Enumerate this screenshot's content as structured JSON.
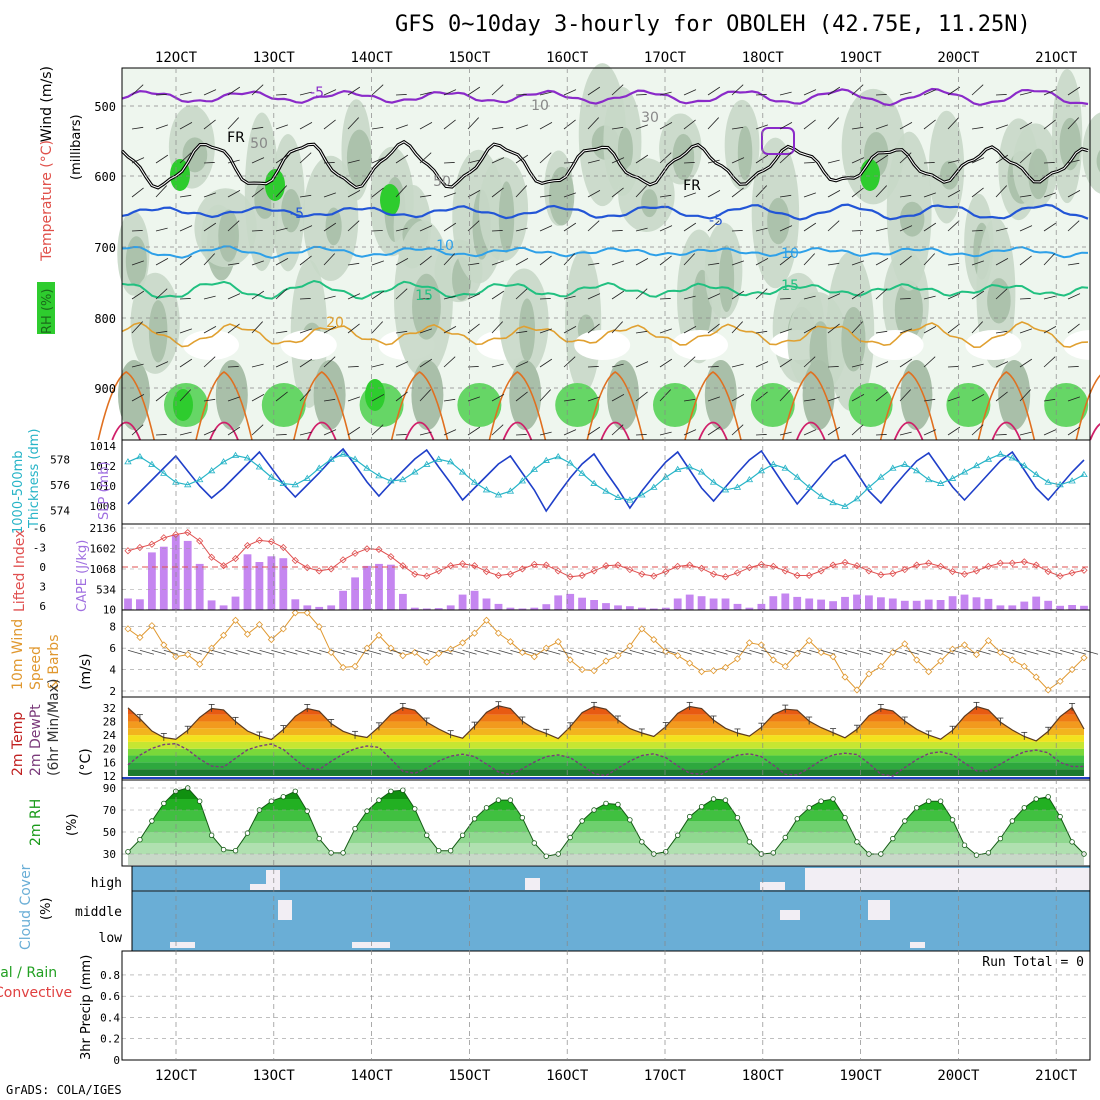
{
  "title": "GFS 0~10day 3-hourly for OBOLEH (42.75E, 11.25N)",
  "credit": "GrADS: COLA/IGES",
  "colors": {
    "rh_light": "#e2efe2",
    "rh_mid": "#c8d8c8",
    "rh_dark": "#a9bfa9",
    "rh_green": "#66d666",
    "rh_bright": "#2ecc2e",
    "cape_bar": "#c586f0",
    "li_line": "#e05050",
    "slp_line": "#1f3fc9",
    "thk_line": "#27b4c7",
    "wind_line": "#e0982f",
    "cloud_fill": "#6aaed6",
    "rh2m_fill": "#22bb22",
    "temp_fill": "#f08a1a"
  },
  "chart_data": {
    "type": "meteogram",
    "time_axis": {
      "ticks": [
        "12OCT",
        "13OCT",
        "14OCT",
        "15OCT",
        "16OCT",
        "17OCT",
        "18OCT",
        "19OCT",
        "20OCT",
        "21OCT"
      ],
      "steps_3hr": 81
    },
    "panels": [
      {
        "id": "upper_air",
        "ylabel_parts": [
          "Wind (m/s)",
          "Temperature (°C)",
          "RH (%)",
          "(millibars)"
        ],
        "yticks": [
          "500",
          "600",
          "700",
          "800",
          "900"
        ],
        "contour_labels": [
          "-5",
          "FR",
          "-5",
          "10",
          "15",
          "20",
          "10",
          "15",
          "FR",
          "-5",
          "50",
          "50",
          "30",
          "10"
        ],
        "rh_colorbar": "RH (%)"
      },
      {
        "id": "slp_thickness",
        "ylabel_left": [
          "1000-500mb",
          "Thickness (dm)"
        ],
        "ylabel_right": "SLP (mb)",
        "yticks_left": [
          "574",
          "576",
          "578"
        ],
        "yticks_right": [
          "1008",
          "1010",
          "1012",
          "1014"
        ],
        "slp": [
          1008.2,
          1009.4,
          1010.6,
          1011.8,
          1013.0,
          1011.5,
          1010.0,
          1008.8,
          1009.8,
          1011.0,
          1012.2,
          1013.4,
          1011.8,
          1010.2,
          1008.9,
          1010.1,
          1011.3,
          1012.6,
          1013.7,
          1012.1,
          1010.4,
          1009.0,
          1010.3,
          1011.5,
          1012.7,
          1013.6,
          1011.9,
          1010.3,
          1008.6,
          1009.8,
          1011.0,
          1012.2,
          1013.0,
          1011.3,
          1009.6,
          1007.5,
          1009.2,
          1010.8,
          1012.2,
          1013.2,
          1011.4,
          1009.7,
          1007.8,
          1009.5,
          1011.0,
          1012.4,
          1013.4,
          1011.6,
          1009.8,
          1008.5,
          1009.9,
          1011.3,
          1012.6,
          1013.5,
          1011.7,
          1009.9,
          1008.2,
          1009.6,
          1011.0,
          1012.4,
          1013.1,
          1011.3,
          1009.5,
          1008.3,
          1009.8,
          1011.2,
          1012.5,
          1013.3,
          1011.6,
          1009.9,
          1008.6,
          1009.9,
          1011.2,
          1012.5,
          1013.4,
          1011.6,
          1009.8,
          1008.6,
          1010.0,
          1011.4,
          1012.6
        ],
        "thickness": [
          577.8,
          578.2,
          577.6,
          576.9,
          576.2,
          576.0,
          576.4,
          577.1,
          577.8,
          578.3,
          578.1,
          577.4,
          576.6,
          576.1,
          576.0,
          576.5,
          577.3,
          578.0,
          578.4,
          578.0,
          577.3,
          576.7,
          576.3,
          576.4,
          577.0,
          577.6,
          578.0,
          577.8,
          577.0,
          576.2,
          575.6,
          575.2,
          575.5,
          576.3,
          577.2,
          577.9,
          578.2,
          577.7,
          576.9,
          576.1,
          575.5,
          575.0,
          574.8,
          575.2,
          575.8,
          576.6,
          577.2,
          577.4,
          577.0,
          576.2,
          575.6,
          575.8,
          576.4,
          577.1,
          577.6,
          577.3,
          576.6,
          575.8,
          575.1,
          574.6,
          574.3,
          574.9,
          575.8,
          576.6,
          577.3,
          577.6,
          577.1,
          576.4,
          576.1,
          576.5,
          577.0,
          577.5,
          578.0,
          578.4,
          578.1,
          577.5,
          576.8,
          576.2,
          576.0,
          576.3,
          576.8
        ]
      },
      {
        "id": "cape_li",
        "ylabel_left": "Lifted Index",
        "ylabel_right": "CAPE (J/kg)",
        "yticks_left": [
          "6",
          "3",
          "0",
          "-3",
          "-6"
        ],
        "yticks_right": [
          "10",
          "534",
          "1068",
          "1602",
          "2136"
        ],
        "cape": [
          300,
          280,
          1500,
          1650,
          1950,
          1800,
          1200,
          250,
          120,
          350,
          1450,
          1250,
          1400,
          1350,
          280,
          120,
          80,
          120,
          500,
          850,
          1150,
          1200,
          1180,
          420,
          60,
          40,
          50,
          120,
          400,
          500,
          300,
          160,
          60,
          40,
          60,
          150,
          380,
          420,
          320,
          260,
          180,
          120,
          100,
          60,
          40,
          60,
          300,
          400,
          360,
          300,
          300,
          160,
          60,
          160,
          360,
          430,
          340,
          300,
          270,
          230,
          340,
          400,
          380,
          330,
          300,
          240,
          240,
          270,
          260,
          360,
          400,
          330,
          290,
          120,
          120,
          220,
          350,
          240,
          110,
          130,
          110
        ],
        "lifted_index": [
          -2.5,
          -3.0,
          -3.5,
          -4.5,
          -5.0,
          -5.3,
          -4.0,
          -1.5,
          -0.2,
          -1.3,
          -3.3,
          -4.1,
          -3.9,
          -3.0,
          -1.0,
          0.1,
          0.6,
          0.3,
          -1.1,
          -2.1,
          -2.8,
          -2.7,
          -1.6,
          -0.2,
          1.1,
          1.4,
          0.6,
          -0.2,
          -0.5,
          -0.2,
          0.7,
          1.3,
          1.1,
          0.3,
          -0.4,
          -0.3,
          0.6,
          1.5,
          1.3,
          0.6,
          -0.2,
          -0.3,
          0.4,
          1.1,
          1.4,
          0.7,
          -0.1,
          -0.3,
          0.2,
          1.1,
          1.5,
          0.9,
          0.1,
          -0.4,
          -0.1,
          0.6,
          1.3,
          1.3,
          0.6,
          -0.3,
          -0.7,
          -0.2,
          0.6,
          1.2,
          1.0,
          0.4,
          -0.3,
          -0.6,
          -0.1,
          0.7,
          1.1,
          0.6,
          -0.1,
          -0.6,
          -0.6,
          -0.8,
          -0.3,
          0.7,
          1.4,
          0.9,
          0.5
        ]
      },
      {
        "id": "wind10m",
        "ylabel": [
          "10m Wind",
          "Speed",
          "& Barbs",
          "(m/s)"
        ],
        "yticks": [
          "2",
          "4",
          "6",
          "8"
        ],
        "speed": [
          7.8,
          7.0,
          8.1,
          6.3,
          5.2,
          5.4,
          4.5,
          6.0,
          7.2,
          8.6,
          7.3,
          8.2,
          6.8,
          7.8,
          9.3,
          9.3,
          8.0,
          5.6,
          4.2,
          4.3,
          6.0,
          7.2,
          6.0,
          5.3,
          5.6,
          4.7,
          5.5,
          5.9,
          6.5,
          7.4,
          8.6,
          7.4,
          6.6,
          5.6,
          5.2,
          6.0,
          6.6,
          4.9,
          4.0,
          3.9,
          4.8,
          5.3,
          6.2,
          7.8,
          6.8,
          5.7,
          5.3,
          4.6,
          3.8,
          3.9,
          4.2,
          5.0,
          6.5,
          6.3,
          4.9,
          4.3,
          5.5,
          6.7,
          5.6,
          5.2,
          3.3,
          2.1,
          3.6,
          4.3,
          5.6,
          6.4,
          4.9,
          3.8,
          4.8,
          5.9,
          6.3,
          5.4,
          6.7,
          5.6,
          4.9,
          4.3,
          3.3,
          2.1,
          2.9,
          4.0,
          5.1
        ]
      },
      {
        "id": "temp2m",
        "ylabel": [
          "2m Temp",
          "2m DewPt",
          "(6hr Min/Max)",
          "(°C)"
        ],
        "yticks": [
          "12",
          "16",
          "20",
          "24",
          "28",
          "32"
        ],
        "temp": [
          32.0,
          28.8,
          25.2,
          23.3,
          22.8,
          25.4,
          29.2,
          31.8,
          31.4,
          28.0,
          25.2,
          23.7,
          22.7,
          25.6,
          29.5,
          31.8,
          31.0,
          27.4,
          25.1,
          23.9,
          23.3,
          26.4,
          30.1,
          32.1,
          31.3,
          27.8,
          25.8,
          24.1,
          23.1,
          26.6,
          30.7,
          32.6,
          31.8,
          28.1,
          25.8,
          24.5,
          23.0,
          26.4,
          30.6,
          32.4,
          31.6,
          28.4,
          25.9,
          24.6,
          23.6,
          26.5,
          30.4,
          32.4,
          31.8,
          28.4,
          26.0,
          24.6,
          23.7,
          26.3,
          30.0,
          31.6,
          31.3,
          28.1,
          26.2,
          24.7,
          23.2,
          25.7,
          29.7,
          31.8,
          31.1,
          28.1,
          25.7,
          24.0,
          22.8,
          25.4,
          29.5,
          32.4,
          31.4,
          27.8,
          25.5,
          23.6,
          22.3,
          25.1,
          29.4,
          32.1,
          25.8
        ],
        "dewpt": [
          15.3,
          18.1,
          20.1,
          21.2,
          21.5,
          19.7,
          17.0,
          14.9,
          14.6,
          17.2,
          19.7,
          20.8,
          21.4,
          19.8,
          16.8,
          14.2,
          13.9,
          16.3,
          18.4,
          20.0,
          20.8,
          20.4,
          17.0,
          13.4,
          12.8,
          14.3,
          16.4,
          17.8,
          18.4,
          17.7,
          15.5,
          13.2,
          12.4,
          14.1,
          16.1,
          17.7,
          18.2,
          17.4,
          15.1,
          12.7,
          12.1,
          14.3,
          16.4,
          18.0,
          18.5,
          17.4,
          15.0,
          12.8,
          12.5,
          14.4,
          16.6,
          18.1,
          18.5,
          17.7,
          15.2,
          12.5,
          12.3,
          14.3,
          16.6,
          18.2,
          18.7,
          18.3,
          15.7,
          12.5,
          12.0,
          14.5,
          16.8,
          18.6,
          19.1,
          18.2,
          15.8,
          13.5,
          13.5,
          15.5,
          17.5,
          19.1,
          19.6,
          18.8,
          16.0,
          14.8,
          14.8
        ]
      },
      {
        "id": "rh2m",
        "ylabel": [
          "2m RH",
          "(%)"
        ],
        "yticks": [
          "30",
          "50",
          "70",
          "90"
        ],
        "rh": [
          32,
          43,
          60,
          76,
          87,
          90,
          78,
          47,
          34,
          33,
          49,
          70,
          78,
          82,
          87,
          69,
          44,
          31,
          31,
          53,
          69,
          79,
          87,
          88,
          71,
          47,
          33,
          33,
          47,
          62,
          72,
          79,
          79,
          63,
          40,
          28,
          30,
          45,
          60,
          70,
          76,
          75,
          61,
          41,
          30,
          32,
          47,
          64,
          73,
          80,
          79,
          63,
          41,
          30,
          31,
          45,
          62,
          72,
          78,
          80,
          63,
          41,
          30,
          30,
          44,
          60,
          72,
          78,
          78,
          61,
          38,
          29,
          31,
          44,
          60,
          72,
          80,
          82,
          64,
          41,
          30
        ]
      },
      {
        "id": "cloud",
        "ylabel": [
          "Cloud Cover",
          "(%)"
        ],
        "rows": [
          "high",
          "middle",
          "low"
        ]
      },
      {
        "id": "precip",
        "ylabel_left": [
          "Total / Rain",
          "Convective"
        ],
        "ylabel_right": [
          "3hr Precip (mm)"
        ],
        "yticks": [
          "0",
          "0.2",
          "0.4",
          "0.6",
          "0.8"
        ],
        "run_total": "Run Total = 0"
      }
    ]
  }
}
